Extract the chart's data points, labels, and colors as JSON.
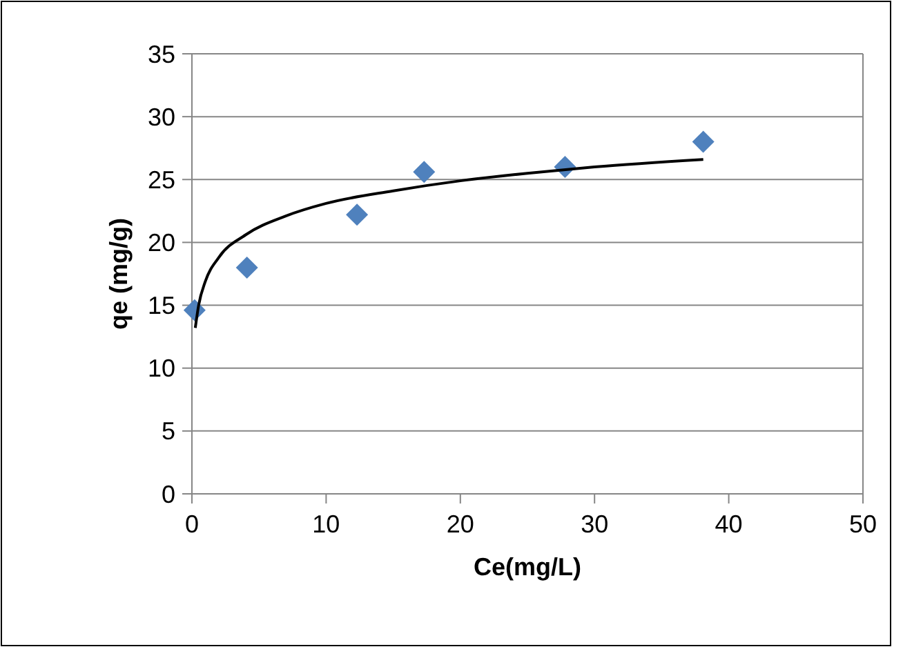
{
  "chart_data": {
    "type": "scatter",
    "xlabel": "Ce(mg/L)",
    "ylabel": "qe (mg/g)",
    "xlim": [
      0,
      50
    ],
    "xticks": [
      0,
      10,
      20,
      30,
      40,
      50
    ],
    "ylim": [
      0,
      35
    ],
    "yticks": [
      0,
      5,
      10,
      15,
      20,
      25,
      30,
      35
    ],
    "grid": "y",
    "marker": "diamond",
    "series": [
      {
        "color": "#4f81bd",
        "x": [
          0.2,
          4.1,
          12.3,
          17.3,
          27.8,
          38.1
        ],
        "values": [
          14.6,
          18.0,
          22.2,
          25.6,
          26.0,
          28.0
        ]
      },
      {
        "type": "line",
        "color": "#000000",
        "marker": "none",
        "x": [
          0.25,
          0.5,
          1,
          2,
          4,
          7,
          10,
          15,
          20,
          25,
          30,
          38.1
        ],
        "values": [
          13.2,
          15.0,
          16.9,
          18.8,
          20.6,
          22.1,
          23.1,
          24.1,
          24.9,
          25.5,
          26.0,
          26.6
        ]
      }
    ]
  }
}
